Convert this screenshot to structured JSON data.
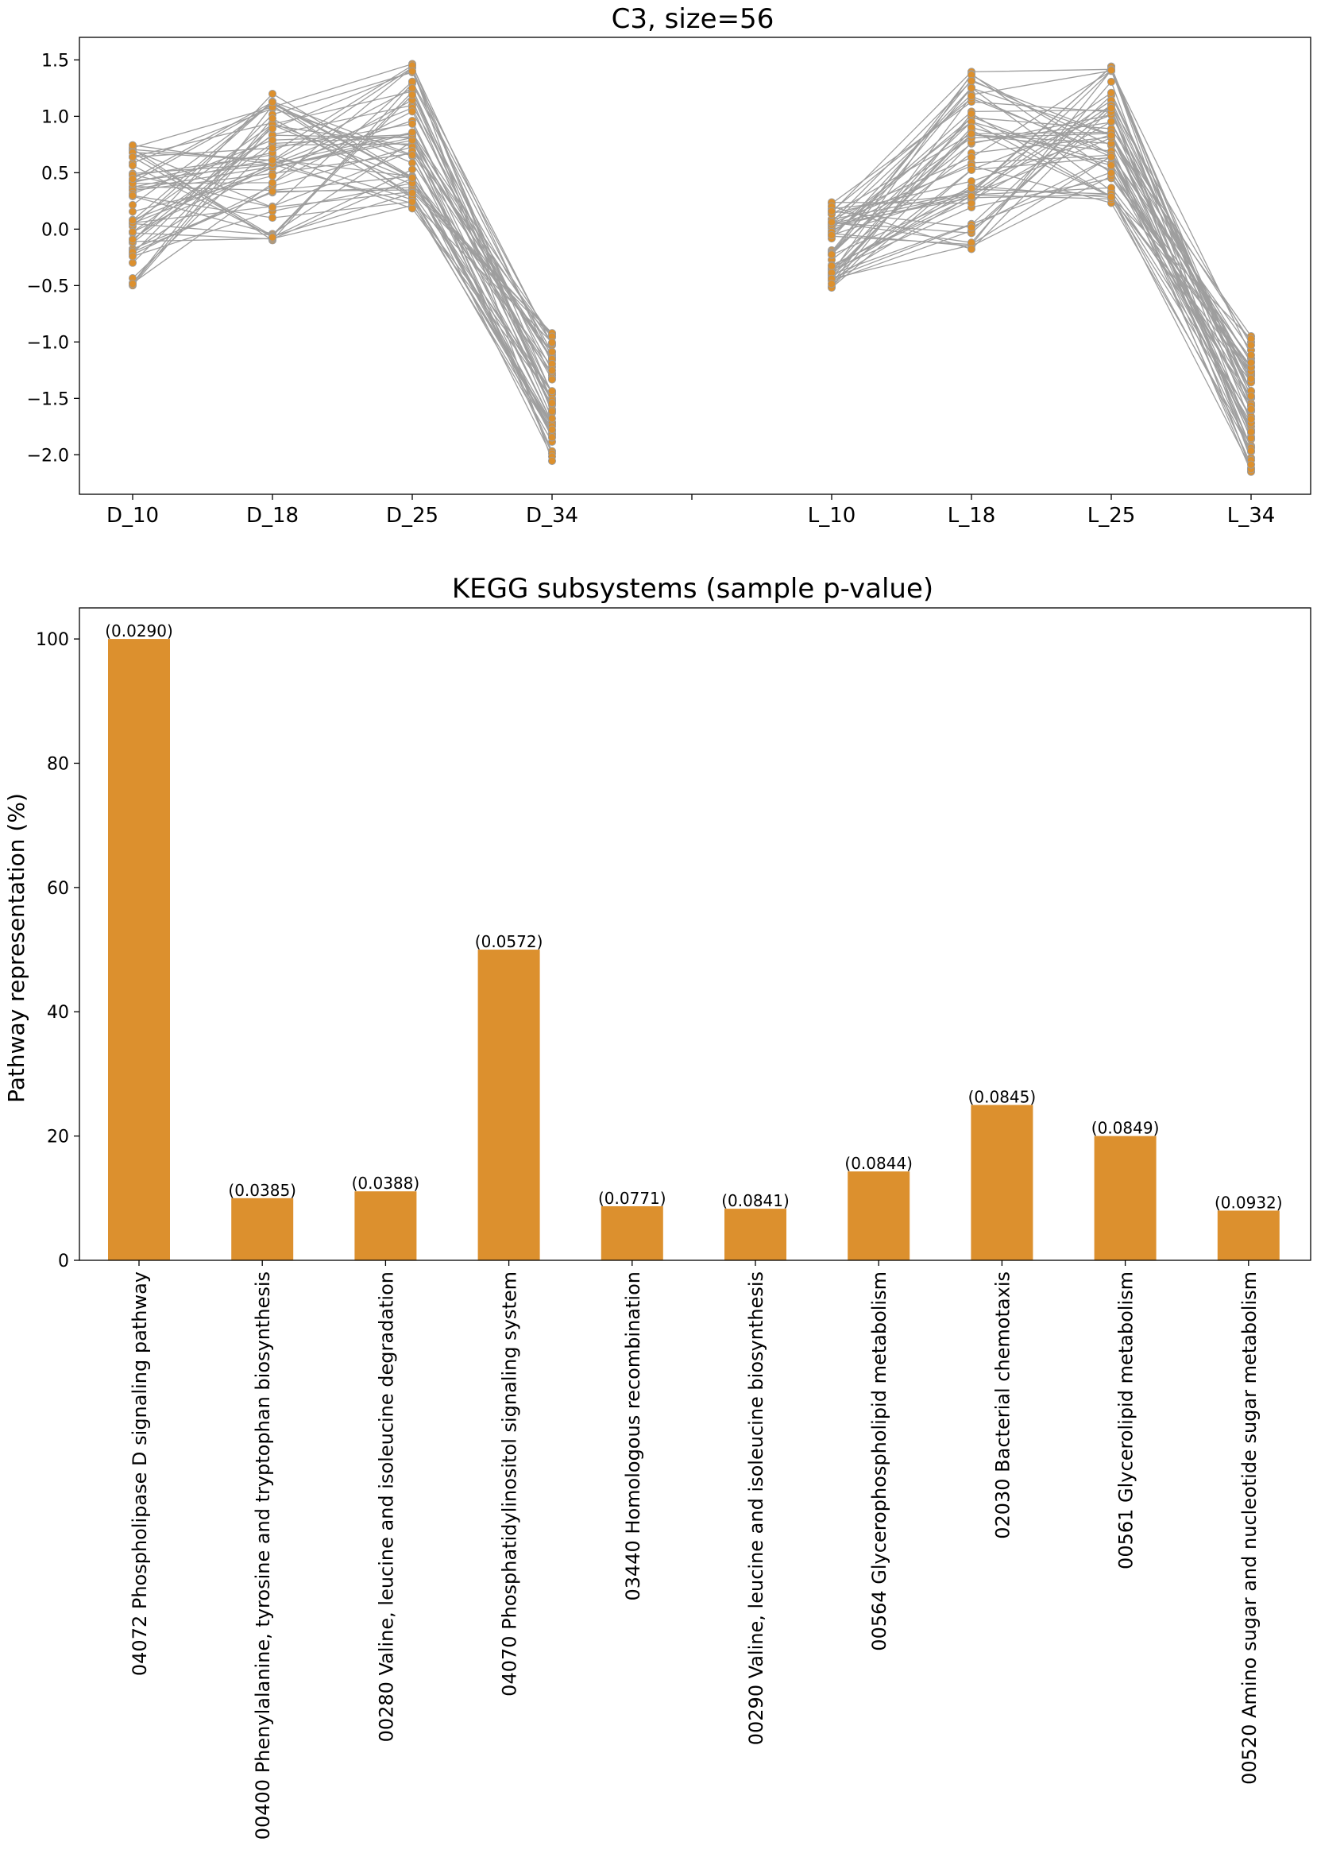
{
  "chart_data": [
    {
      "type": "line",
      "title": "C3, size=56",
      "xlabel": "",
      "ylabel": "",
      "categories": [
        "D_10",
        "D_18",
        "D_25",
        "D_34",
        "L_10",
        "L_18",
        "L_25",
        "L_34"
      ],
      "yticks": [
        -2.0,
        -1.5,
        -1.0,
        -0.5,
        0.0,
        0.5,
        1.0,
        1.5
      ],
      "ytick_labels": [
        "−2.0",
        "−1.5",
        "−1.0",
        "−0.5",
        "0.0",
        "0.5",
        "1.0",
        "1.5"
      ],
      "ylim": [
        -2.35,
        1.7
      ],
      "grid": false,
      "line_color": "#9e9e9e",
      "marker_color": "#dc902e",
      "groups": [
        {
          "name": "D",
          "categories": [
            "D_10",
            "D_18",
            "D_25",
            "D_34"
          ]
        },
        {
          "name": "L",
          "categories": [
            "L_10",
            "L_18",
            "L_25",
            "L_34"
          ]
        }
      ],
      "series_count": 56,
      "series_summary": {
        "D_10": {
          "min": -0.5,
          "max": 0.75
        },
        "D_18": {
          "min": -0.13,
          "max": 1.23
        },
        "D_25": {
          "min": 0.16,
          "max": 1.49
        },
        "D_34": {
          "min": -2.07,
          "max": -0.89
        },
        "L_10": {
          "min": -0.53,
          "max": 0.25
        },
        "L_18": {
          "min": -0.18,
          "max": 1.4
        },
        "L_25": {
          "min": 0.21,
          "max": 1.52
        },
        "L_34": {
          "min": -2.16,
          "max": -0.94
        }
      }
    },
    {
      "type": "bar",
      "title": "KEGG subsystems (sample p-value)",
      "xlabel": "",
      "ylabel": "Pathway representation (%)",
      "ylim": [
        0,
        105
      ],
      "yticks": [
        0,
        20,
        40,
        60,
        80,
        100
      ],
      "grid": false,
      "bar_color": "#dc902e",
      "categories": [
        "04072 Phospholipase D signaling pathway",
        "00400 Phenylalanine, tyrosine and tryptophan biosynthesis",
        "00280 Valine, leucine and isoleucine degradation",
        "04070 Phosphatidylinositol signaling system",
        "03440 Homologous recombination",
        "00290 Valine, leucine and isoleucine biosynthesis",
        "00564 Glycerophospholipid metabolism",
        "02030 Bacterial chemotaxis",
        "00561 Glycerolipid metabolism",
        "00520 Amino sugar and nucleotide sugar metabolism"
      ],
      "values": [
        100,
        10,
        11.1,
        50,
        8.7,
        8.3,
        14.3,
        25,
        20,
        8
      ],
      "data_labels": [
        "(0.0290)",
        "(0.0385)",
        "(0.0388)",
        "(0.0572)",
        "(0.0771)",
        "(0.0841)",
        "(0.0844)",
        "(0.0845)",
        "(0.0849)",
        "(0.0932)"
      ]
    }
  ]
}
